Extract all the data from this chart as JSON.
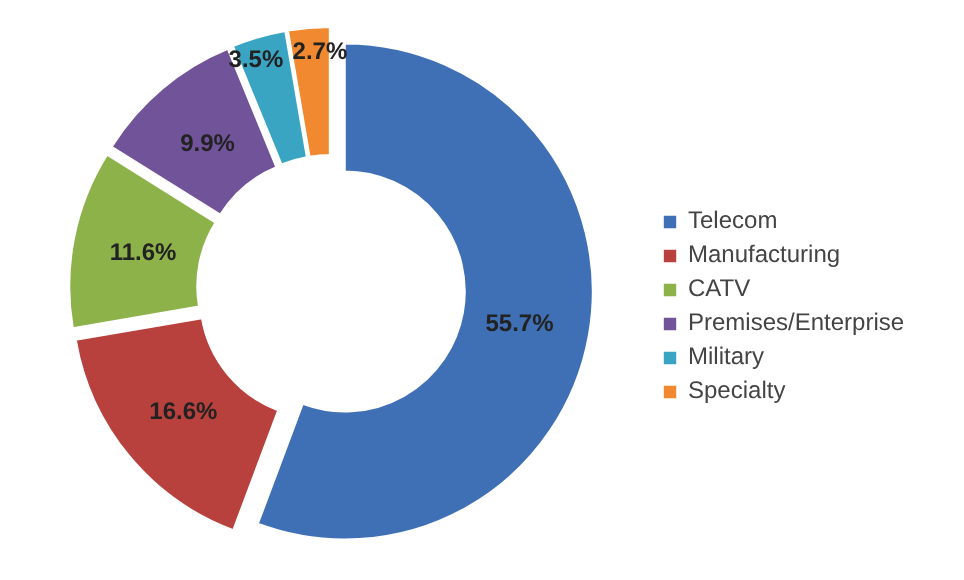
{
  "chart_data": {
    "type": "donut",
    "categories": [
      "Telecom",
      "Manufacturing",
      "CATV",
      "Premises/Enterprise",
      "Military",
      "Specialty"
    ],
    "values": [
      55.7,
      16.6,
      11.6,
      9.9,
      3.5,
      2.7
    ],
    "colors": [
      "#3f6fb5",
      "#b9413d",
      "#8db249",
      "#71539a",
      "#3aa5c3",
      "#f0892f"
    ],
    "value_labels": [
      "55.7%",
      "16.6%",
      "11.6%",
      "9.9%",
      "3.5%",
      "2.7%"
    ],
    "legend": "right"
  }
}
